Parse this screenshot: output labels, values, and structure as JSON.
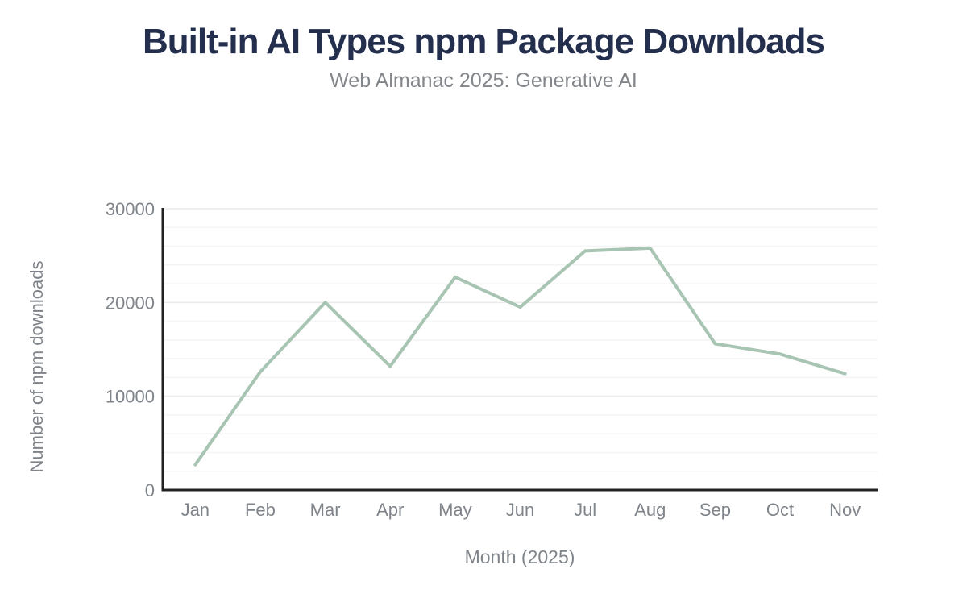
{
  "chart_data": {
    "type": "line",
    "title": "Built-in AI Types npm Package Downloads",
    "subtitle": "Web Almanac 2025: Generative AI",
    "categories": [
      "Jan",
      "Feb",
      "Mar",
      "Apr",
      "May",
      "Jun",
      "Jul",
      "Aug",
      "Sep",
      "Oct",
      "Nov"
    ],
    "values": [
      2700,
      12600,
      20000,
      13200,
      22700,
      19500,
      25500,
      25800,
      15600,
      14500,
      12400
    ],
    "xlabel": "Month (2025)",
    "ylabel": "Number of npm downloads",
    "ylim": [
      0,
      30000
    ],
    "yticks": [
      0,
      10000,
      20000,
      30000
    ],
    "ytick_labels": [
      "0",
      "10000",
      "20000",
      "30000"
    ],
    "minor_grid_step": 2000,
    "grid": "horizontal",
    "legend": "none",
    "markers": "none",
    "colors": {
      "line": "#a8c4b2",
      "axis": "#222222",
      "grid_major": "#eaeaea",
      "grid_minor": "#f4f4f4",
      "tick_label": "#7f848a",
      "axis_title": "#7f848a",
      "title": "#242f4e",
      "subtitle": "#83878b",
      "background": "#ffffff"
    }
  }
}
